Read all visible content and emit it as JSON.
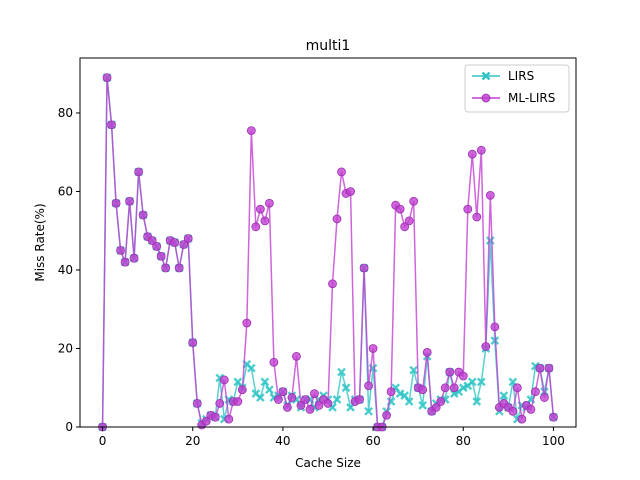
{
  "chart_data": {
    "type": "line",
    "title": "multi1",
    "xlabel": "Cache Size",
    "ylabel": "Miss Rate(%)",
    "xlim": [
      -5,
      105
    ],
    "ylim": [
      0,
      94
    ],
    "xticks": [
      0,
      20,
      40,
      60,
      80,
      100
    ],
    "yticks": [
      0,
      20,
      40,
      60,
      80
    ],
    "legend_position": "top-right",
    "grid": false,
    "x": [
      0,
      1,
      2,
      3,
      4,
      5,
      6,
      7,
      8,
      9,
      10,
      11,
      12,
      13,
      14,
      15,
      16,
      17,
      18,
      19,
      20,
      21,
      22,
      23,
      24,
      25,
      26,
      27,
      28,
      29,
      30,
      31,
      32,
      33,
      34,
      35,
      36,
      37,
      38,
      39,
      40,
      41,
      42,
      43,
      44,
      45,
      46,
      47,
      48,
      49,
      50,
      51,
      52,
      53,
      54,
      55,
      56,
      57,
      58,
      59,
      60,
      61,
      62,
      63,
      64,
      65,
      66,
      67,
      68,
      69,
      70,
      71,
      72,
      73,
      74,
      75,
      76,
      77,
      78,
      79,
      80,
      81,
      82,
      83,
      84,
      85,
      86,
      87,
      88,
      89,
      90,
      91,
      92,
      93,
      94,
      95,
      96,
      97,
      98,
      99,
      100
    ],
    "series": [
      {
        "name": "LIRS",
        "color": "#2ec4c4",
        "marker": "x",
        "values": [
          0,
          89,
          77,
          57,
          45,
          42,
          57.5,
          43,
          65,
          54,
          48.5,
          47.5,
          46,
          43.5,
          40.5,
          47.5,
          47,
          40.5,
          46.5,
          48,
          21.5,
          6,
          1,
          2,
          3,
          2.5,
          12.5,
          2,
          7,
          6.5,
          11.5,
          10,
          16,
          15,
          8.5,
          7.5,
          11.5,
          9.5,
          7.5,
          8,
          9,
          5.5,
          8,
          7,
          5,
          7,
          7,
          5,
          7,
          8,
          7,
          5,
          7,
          14,
          10,
          5,
          7,
          7,
          40.5,
          4,
          15,
          0,
          0,
          4,
          6.5,
          10,
          8.5,
          8,
          6.5,
          14.5,
          10,
          5.5,
          18,
          4,
          6,
          7,
          7,
          14,
          8.5,
          9,
          10,
          10.5,
          11.5,
          6.5,
          11.5,
          20,
          47.5,
          22,
          4,
          8,
          5,
          11.5,
          2,
          5.5,
          5,
          7,
          15.5,
          15,
          9,
          15,
          2.5
        ]
      },
      {
        "name": "ML-LIRS",
        "color": "#c23fd1",
        "marker": "o",
        "values": [
          0,
          89,
          77,
          57,
          45,
          42,
          57.5,
          43,
          65,
          54,
          48.5,
          47.5,
          46,
          43.5,
          40.5,
          47.5,
          47,
          40.5,
          46.5,
          48,
          21.5,
          6,
          0.5,
          1.5,
          3,
          2.5,
          6,
          12,
          2,
          6.5,
          6.5,
          9.5,
          26.5,
          75.5,
          51,
          55.5,
          52.5,
          57,
          16.5,
          7,
          9,
          5,
          7.5,
          18,
          5.5,
          7,
          4.5,
          8.5,
          5.5,
          7,
          6,
          36.5,
          53,
          65,
          59.5,
          60,
          6.5,
          7,
          40.5,
          10.5,
          20,
          0,
          0,
          3,
          9,
          56.5,
          55.5,
          51,
          52.5,
          57.5,
          10,
          9.5,
          19,
          4,
          5,
          6.5,
          10,
          14,
          10,
          14,
          13,
          55.5,
          69.5,
          53.5,
          70.5,
          20.5,
          59,
          25.5,
          5,
          6,
          5,
          4,
          10,
          2,
          5.5,
          4.5,
          9,
          15,
          7.5,
          15,
          2.5
        ]
      }
    ]
  }
}
